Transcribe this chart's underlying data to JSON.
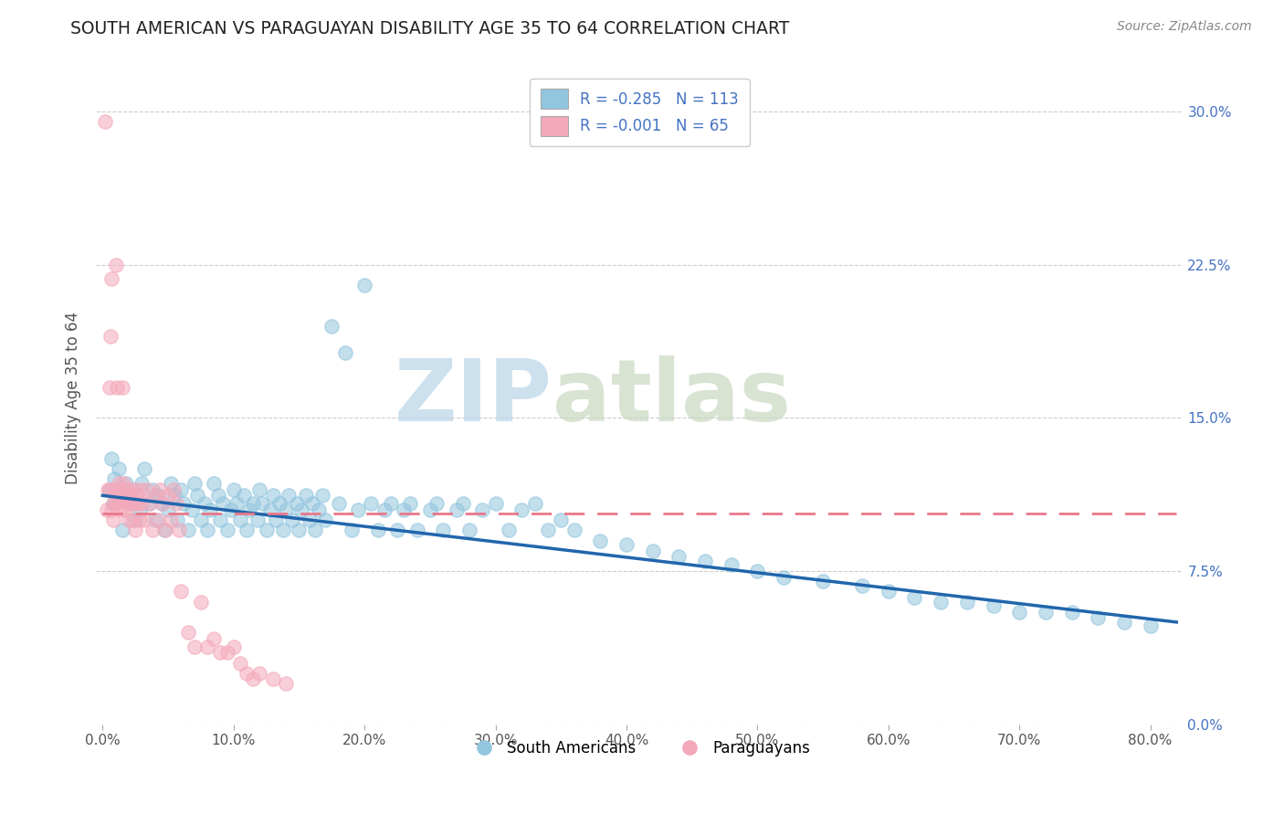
{
  "title": "SOUTH AMERICAN VS PARAGUAYAN DISABILITY AGE 35 TO 64 CORRELATION CHART",
  "source": "Source: ZipAtlas.com",
  "ylabel": "Disability Age 35 to 64",
  "xlim": [
    -0.005,
    0.825
  ],
  "ylim": [
    0.0,
    0.32
  ],
  "legend_labels": [
    "South Americans",
    "Paraguayans"
  ],
  "blue_color": "#92c5de",
  "pink_color": "#f4a9bb",
  "blue_line_color": "#2166ac",
  "pink_line_color": "#e8788a",
  "watermark_zip": "ZIP",
  "watermark_atlas": "atlas",
  "sa_x": [
    0.005,
    0.007,
    0.008,
    0.009,
    0.012,
    0.015,
    0.018,
    0.02,
    0.022,
    0.025,
    0.028,
    0.03,
    0.032,
    0.035,
    0.038,
    0.04,
    0.042,
    0.045,
    0.047,
    0.05,
    0.052,
    0.055,
    0.057,
    0.06,
    0.062,
    0.065,
    0.068,
    0.07,
    0.072,
    0.075,
    0.078,
    0.08,
    0.082,
    0.085,
    0.088,
    0.09,
    0.092,
    0.095,
    0.098,
    0.1,
    0.102,
    0.105,
    0.108,
    0.11,
    0.112,
    0.115,
    0.118,
    0.12,
    0.122,
    0.125,
    0.128,
    0.13,
    0.132,
    0.135,
    0.138,
    0.14,
    0.142,
    0.145,
    0.148,
    0.15,
    0.152,
    0.155,
    0.158,
    0.16,
    0.162,
    0.165,
    0.168,
    0.17,
    0.175,
    0.18,
    0.185,
    0.19,
    0.195,
    0.2,
    0.205,
    0.21,
    0.215,
    0.22,
    0.225,
    0.23,
    0.235,
    0.24,
    0.25,
    0.255,
    0.26,
    0.27,
    0.275,
    0.28,
    0.29,
    0.3,
    0.31,
    0.32,
    0.33,
    0.34,
    0.35,
    0.36,
    0.38,
    0.4,
    0.42,
    0.44,
    0.46,
    0.48,
    0.5,
    0.52,
    0.55,
    0.58,
    0.6,
    0.62,
    0.64,
    0.66,
    0.68,
    0.7,
    0.72,
    0.74,
    0.76,
    0.78,
    0.8
  ],
  "sa_y": [
    0.115,
    0.13,
    0.108,
    0.12,
    0.125,
    0.095,
    0.118,
    0.108,
    0.112,
    0.1,
    0.105,
    0.118,
    0.125,
    0.108,
    0.115,
    0.1,
    0.112,
    0.108,
    0.095,
    0.105,
    0.118,
    0.112,
    0.1,
    0.115,
    0.108,
    0.095,
    0.105,
    0.118,
    0.112,
    0.1,
    0.108,
    0.095,
    0.105,
    0.118,
    0.112,
    0.1,
    0.108,
    0.095,
    0.105,
    0.115,
    0.108,
    0.1,
    0.112,
    0.095,
    0.105,
    0.108,
    0.1,
    0.115,
    0.108,
    0.095,
    0.105,
    0.112,
    0.1,
    0.108,
    0.095,
    0.105,
    0.112,
    0.1,
    0.108,
    0.095,
    0.105,
    0.112,
    0.1,
    0.108,
    0.095,
    0.105,
    0.112,
    0.1,
    0.195,
    0.108,
    0.182,
    0.095,
    0.105,
    0.215,
    0.108,
    0.095,
    0.105,
    0.108,
    0.095,
    0.105,
    0.108,
    0.095,
    0.105,
    0.108,
    0.095,
    0.105,
    0.108,
    0.095,
    0.105,
    0.108,
    0.095,
    0.105,
    0.108,
    0.095,
    0.1,
    0.095,
    0.09,
    0.088,
    0.085,
    0.082,
    0.08,
    0.078,
    0.075,
    0.072,
    0.07,
    0.068,
    0.065,
    0.062,
    0.06,
    0.06,
    0.058,
    0.055,
    0.055,
    0.055,
    0.052,
    0.05,
    0.048
  ],
  "py_x": [
    0.002,
    0.003,
    0.004,
    0.005,
    0.005,
    0.006,
    0.007,
    0.007,
    0.008,
    0.008,
    0.009,
    0.01,
    0.01,
    0.011,
    0.011,
    0.012,
    0.013,
    0.014,
    0.015,
    0.015,
    0.016,
    0.017,
    0.018,
    0.019,
    0.02,
    0.02,
    0.021,
    0.022,
    0.023,
    0.024,
    0.025,
    0.025,
    0.026,
    0.027,
    0.028,
    0.029,
    0.03,
    0.032,
    0.034,
    0.036,
    0.038,
    0.04,
    0.042,
    0.044,
    0.046,
    0.048,
    0.05,
    0.052,
    0.054,
    0.056,
    0.058,
    0.06,
    0.065,
    0.07,
    0.075,
    0.08,
    0.085,
    0.09,
    0.095,
    0.1,
    0.105,
    0.11,
    0.115,
    0.12,
    0.13,
    0.14
  ],
  "py_y": [
    0.295,
    0.105,
    0.115,
    0.115,
    0.165,
    0.19,
    0.105,
    0.218,
    0.108,
    0.1,
    0.115,
    0.108,
    0.225,
    0.112,
    0.165,
    0.118,
    0.11,
    0.105,
    0.115,
    0.165,
    0.118,
    0.105,
    0.112,
    0.108,
    0.115,
    0.1,
    0.112,
    0.108,
    0.1,
    0.115,
    0.108,
    0.095,
    0.112,
    0.108,
    0.1,
    0.115,
    0.108,
    0.1,
    0.115,
    0.108,
    0.095,
    0.112,
    0.1,
    0.115,
    0.108,
    0.095,
    0.112,
    0.1,
    0.115,
    0.108,
    0.095,
    0.065,
    0.045,
    0.038,
    0.06,
    0.038,
    0.042,
    0.035,
    0.035,
    0.038,
    0.03,
    0.025,
    0.022,
    0.025,
    0.022,
    0.02
  ],
  "sa_line_x0": 0.0,
  "sa_line_x1": 0.82,
  "sa_line_y0": 0.112,
  "sa_line_y1": 0.05,
  "py_line_x0": 0.0,
  "py_line_x1": 0.82,
  "py_line_y0": 0.103,
  "py_line_y1": 0.103
}
